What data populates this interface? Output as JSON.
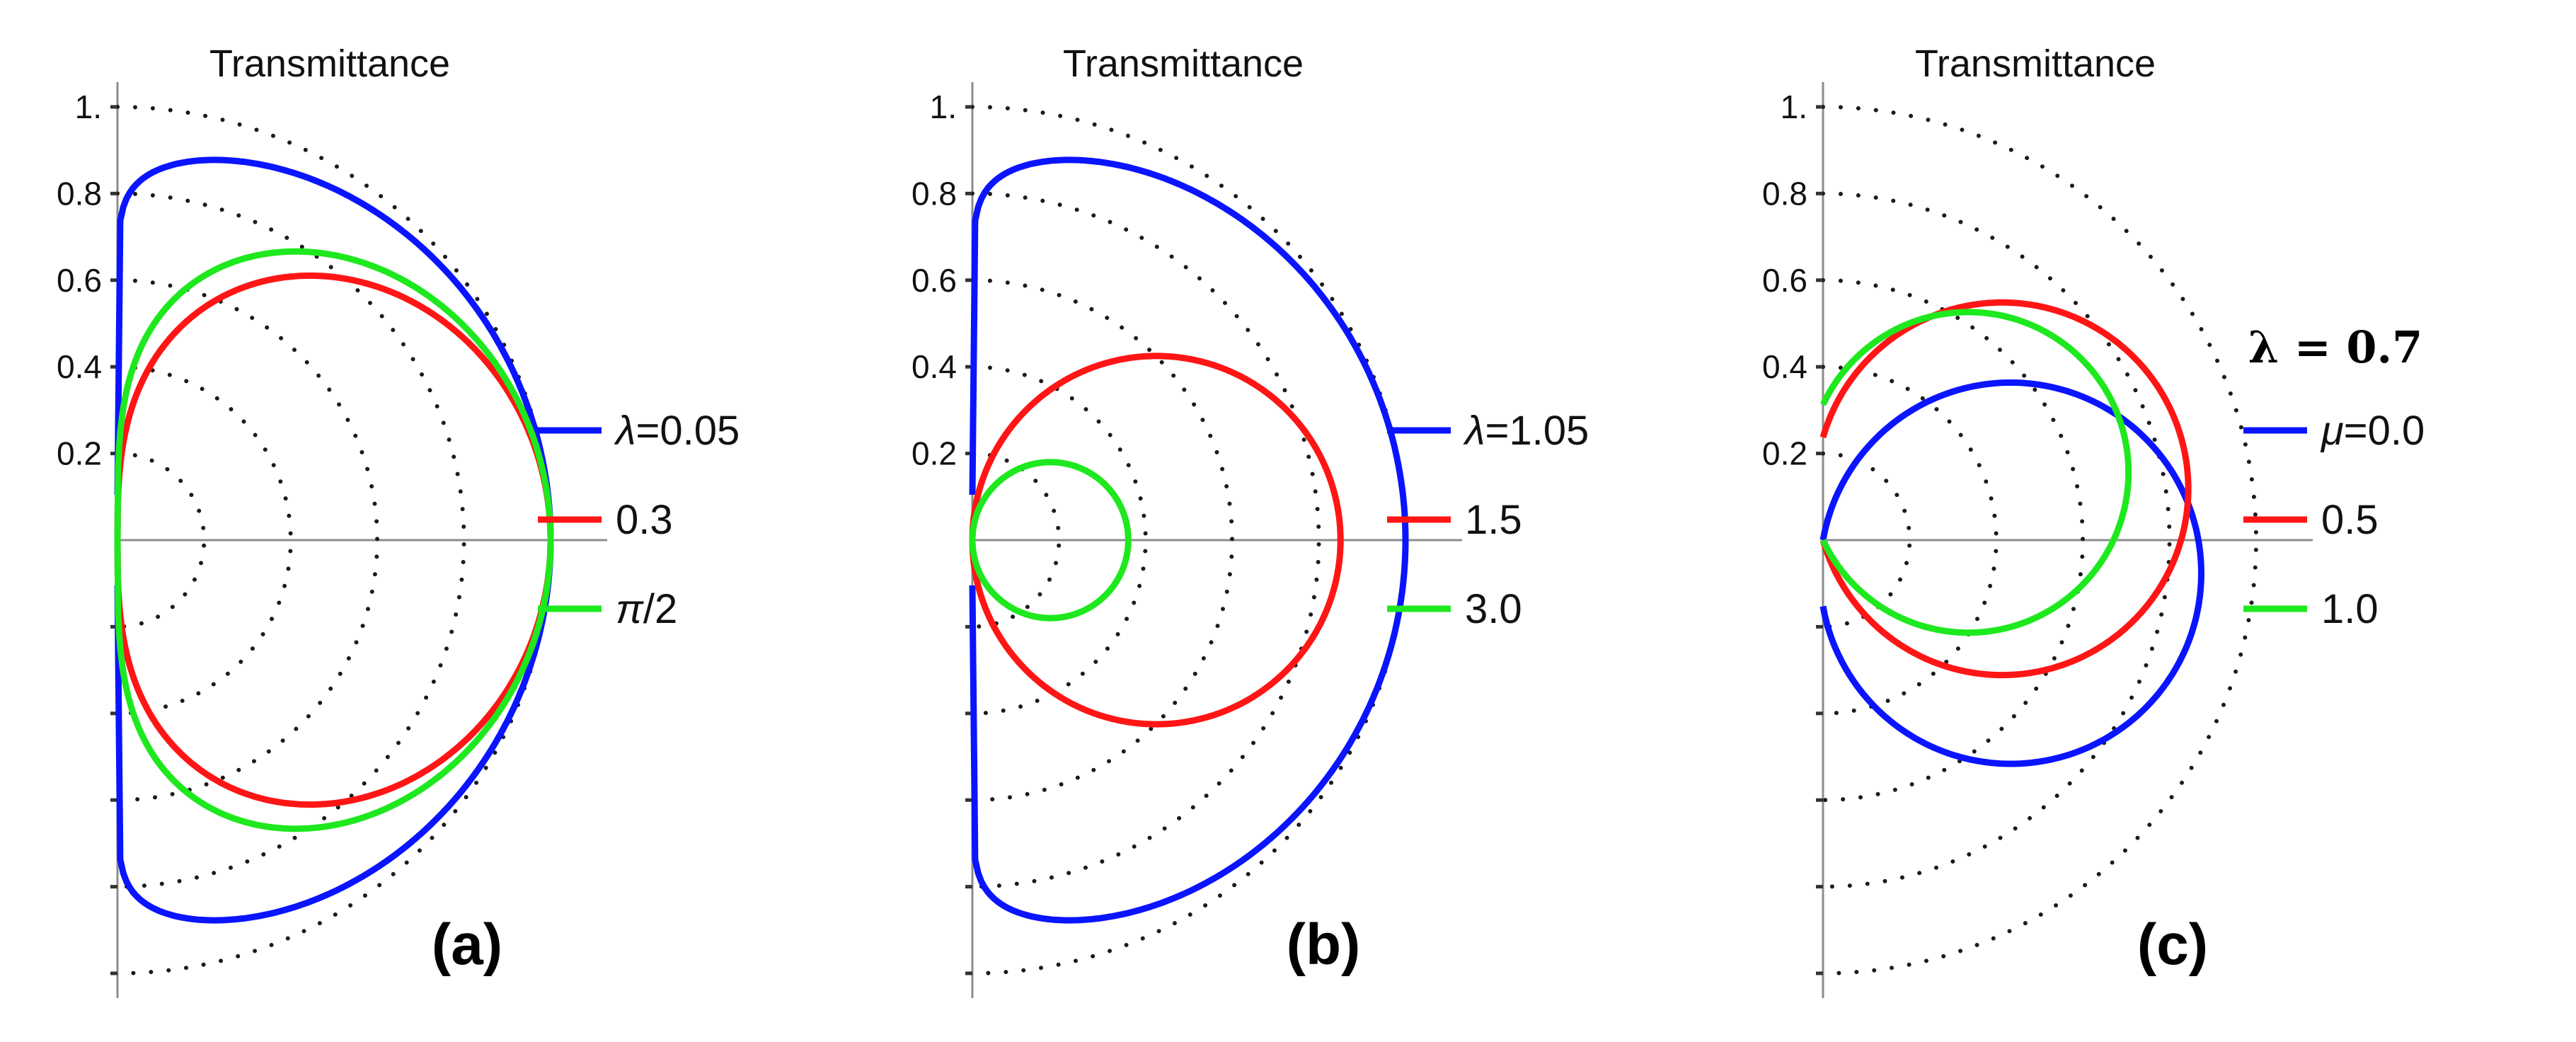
{
  "figure": {
    "description_free": true
  },
  "colors": {
    "blue": "#0a14ff",
    "red": "#ff1515",
    "green": "#1ee81e",
    "grid": "#1a1a1a",
    "axis": "#8c8c8c"
  },
  "chart_data": [
    {
      "type": "polar",
      "panel_label": "(a)",
      "title": "Transmittance",
      "r_ticks": [
        "0.2",
        "0.4",
        "0.6",
        "0.8",
        "1."
      ],
      "rlim": [
        0,
        1
      ],
      "theta_range_deg": [
        -90,
        90
      ],
      "legend_var": "λ",
      "series": [
        {
          "name": "λ=0.05",
          "var": "λ",
          "value_label": "=0.05",
          "param": 0.05,
          "color": "blue",
          "shape": "dshape",
          "peak_r": 1.0,
          "peak_theta_deg": 0,
          "ext": 1.0
        },
        {
          "name": "0.3",
          "var": "",
          "value_label": "0.3",
          "param": 0.3,
          "color": "red",
          "shape": "lens",
          "peak_r": 1.0,
          "peak_theta_deg": 0,
          "ext": 0.53
        },
        {
          "name": "π/2",
          "var": "π",
          "value_label": "/2",
          "param": "π/2",
          "color": "green",
          "shape": "lens",
          "peak_r": 1.0,
          "peak_theta_deg": 0,
          "ext": 0.38
        }
      ]
    },
    {
      "type": "polar",
      "panel_label": "(b)",
      "title": "Transmittance",
      "r_ticks": [
        "0.2",
        "0.4",
        "0.6",
        "0.8",
        "1."
      ],
      "rlim": [
        0,
        1
      ],
      "theta_range_deg": [
        -90,
        90
      ],
      "legend_var": "λ",
      "series": [
        {
          "name": "λ=1.05",
          "var": "λ",
          "value_label": "=1.05",
          "param": 1.05,
          "color": "blue",
          "shape": "dshape",
          "peak_r": 1.0,
          "peak_theta_deg": 0,
          "ext": 0.98
        },
        {
          "name": "1.5",
          "var": "",
          "value_label": "1.5",
          "param": 1.5,
          "color": "red",
          "shape": "circle",
          "peak_r": 0.85,
          "peak_theta_deg": 0
        },
        {
          "name": "3.0",
          "var": "",
          "value_label": "3.0",
          "param": 3.0,
          "color": "green",
          "shape": "circle",
          "peak_r": 0.36,
          "peak_theta_deg": 0
        }
      ]
    },
    {
      "type": "polar",
      "panel_label": "(c)",
      "title": "Transmittance",
      "r_ticks": [
        "0.2",
        "0.4",
        "0.6",
        "0.8",
        "1."
      ],
      "rlim": [
        0,
        1
      ],
      "theta_range_deg": [
        -90,
        90
      ],
      "extra_label": "λ = 0.7",
      "legend_var": "μ",
      "series": [
        {
          "name": "μ=0.0",
          "var": "μ",
          "value_label": "=0.0",
          "param": 0.0,
          "color": "blue",
          "shape": "circle",
          "peak_r": 0.88,
          "peak_theta_deg": -10
        },
        {
          "name": "0.5",
          "var": "",
          "value_label": "0.5",
          "param": 0.5,
          "color": "red",
          "shape": "circle",
          "peak_r": 0.86,
          "peak_theta_deg": 16
        },
        {
          "name": "1.0",
          "var": "",
          "value_label": "1.0",
          "param": 1.0,
          "color": "green",
          "shape": "circle",
          "peak_r": 0.74,
          "peak_theta_deg": 25
        }
      ]
    }
  ]
}
